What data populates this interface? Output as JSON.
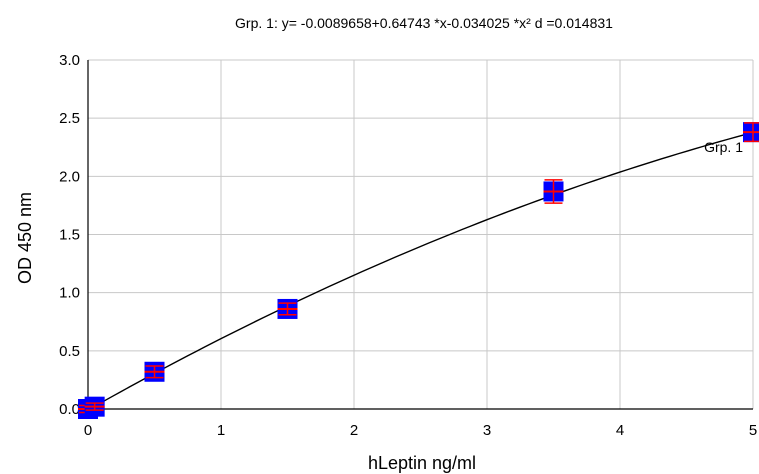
{
  "chart_data": {
    "type": "scatter",
    "title": "Grp. 1: y= -0.0089658+0.64743 *x-0.034025 *x²   d =0.014831",
    "xlabel": "hLeptin ng/ml",
    "ylabel": "OD 450 nm",
    "xlim": [
      0,
      5
    ],
    "ylim": [
      0,
      3
    ],
    "x_ticks": [
      "0",
      "1",
      "2",
      "3",
      "4",
      "5"
    ],
    "y_ticks": [
      "0.0",
      "0.5",
      "1.0",
      "1.5",
      "2.0",
      "2.5",
      "3.0"
    ],
    "grid": true,
    "series": [
      {
        "name": "Grp. 1",
        "x": [
          0,
          0.05,
          0.5,
          1.5,
          3.5,
          5
        ],
        "y": [
          0.0,
          0.02,
          0.32,
          0.86,
          1.87,
          2.38
        ],
        "y_error": [
          0.03,
          0.03,
          0.05,
          0.05,
          0.1,
          0.08
        ],
        "fit": {
          "kind": "quadratic",
          "a": -0.0089658,
          "b": 0.64743,
          "c": -0.034025,
          "d": 0.014831
        }
      }
    ],
    "colors": {
      "marker": "#0000ff",
      "error_bar": "#ff0000",
      "curve": "#000000",
      "grid": "#c8c8c8"
    }
  }
}
